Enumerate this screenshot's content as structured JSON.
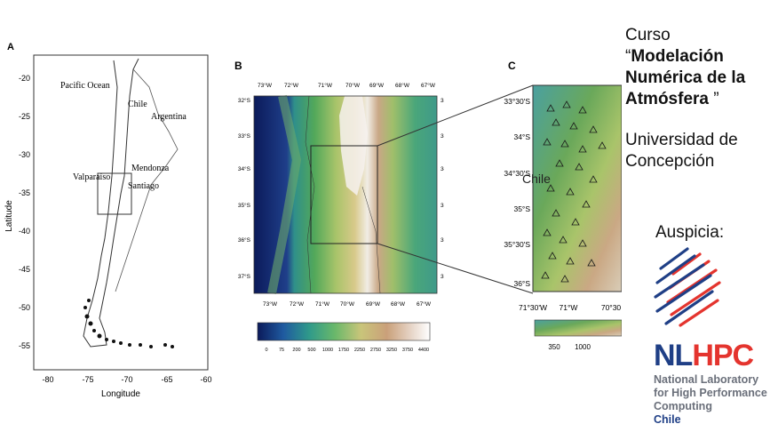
{
  "panelA": {
    "letter": "A",
    "labels": {
      "pacific": "Pacific Ocean",
      "chile": "Chile",
      "argentina": "Argentina",
      "mendonza": "Mendonza",
      "valparaiso": "Valparaíso",
      "santiago": "Santiago"
    },
    "yticks": [
      "-20",
      "-25",
      "-30",
      "-35",
      "-40",
      "-45",
      "-50",
      "-55"
    ],
    "xticks": [
      "-80",
      "-75",
      "-70",
      "-65",
      "-60"
    ],
    "xlabel": "Longitude",
    "ylabel": "Latitude"
  },
  "panelB": {
    "letter": "B",
    "top_ticks": [
      "73°W",
      "72°W",
      "71°W",
      "70°W",
      "69°W",
      "68°W",
      "67°W"
    ],
    "bottom_ticks": [
      "73°W",
      "72°W",
      "71°W",
      "70°W",
      "69°W",
      "68°W",
      "67°W"
    ],
    "lat_ticks": [
      "32°S",
      "33°S",
      "34°S",
      "35°S",
      "36°S",
      "37°S"
    ],
    "colorbar_ticks": [
      "0",
      "75",
      "200",
      "500",
      "1000",
      "1750",
      "2250",
      "2750",
      "3250",
      "3750",
      "4400"
    ]
  },
  "panelC": {
    "letter": "C",
    "lat_ticks": [
      "33°30'S",
      "34°S",
      "34°30'S",
      "35°S",
      "35°30'S",
      "36°S"
    ],
    "lon_ticks": [
      "71°30'W",
      "71°W",
      "70°30"
    ],
    "chile": "Chile",
    "colorbar_ticks": [
      "350",
      "1000"
    ]
  },
  "sidebar": {
    "curso": "Curso",
    "title_open": "“",
    "title_bold_1": "Modelación",
    "title_bold_2": "Numérica de la",
    "title_bold_3": "Atmósfera",
    "title_close": " ”",
    "university_1": "Universidad de",
    "university_2": "Concepción",
    "auspicia": "Auspicia:",
    "logo": {
      "nl": "NL",
      "hpc": "HPC",
      "line1": "National Laboratory",
      "line2": "for High Performance",
      "line3": "Computing",
      "line4": "Chile",
      "color_blue": "#1f3f86",
      "color_red": "#e4342e",
      "color_gray": "#6a6f7a"
    }
  }
}
